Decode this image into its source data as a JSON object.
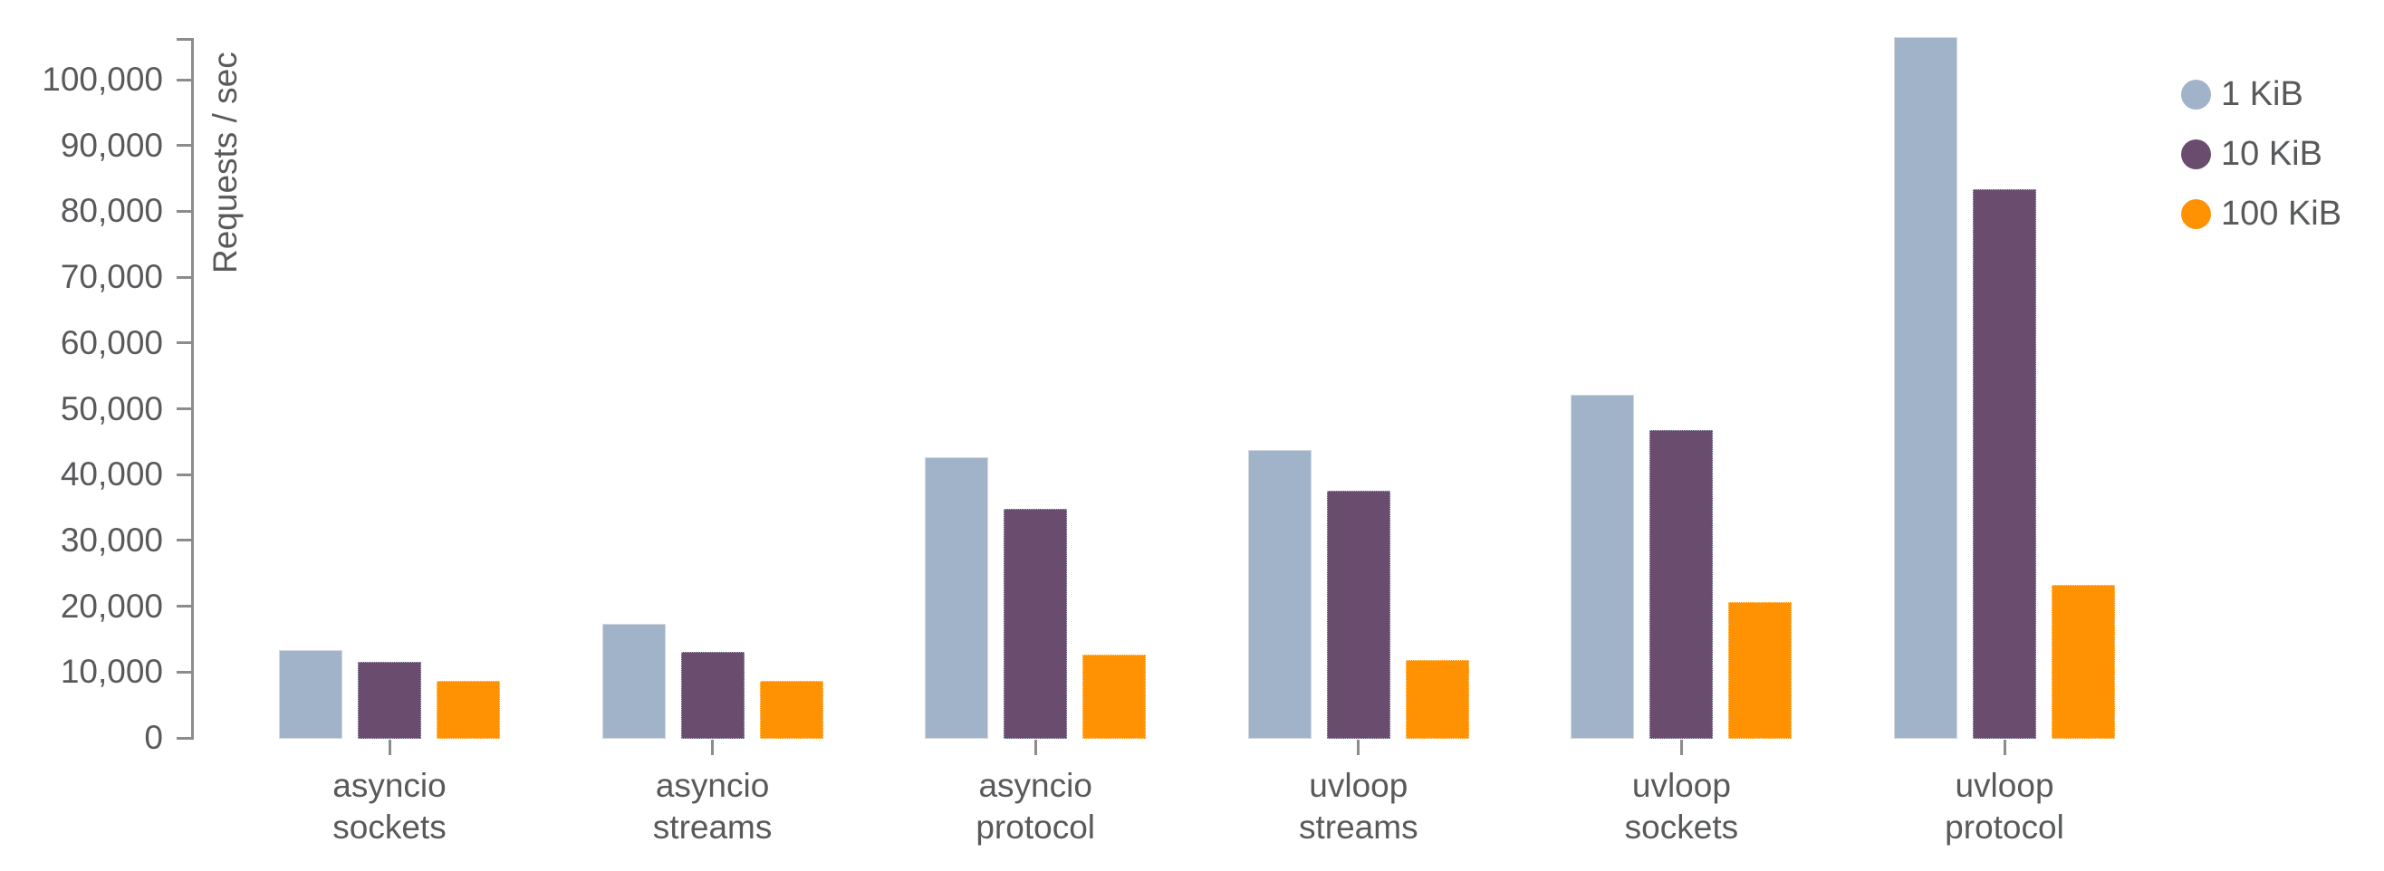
{
  "chart_data": {
    "type": "bar",
    "title": "",
    "xlabel": "",
    "ylabel": "Requests / sec",
    "grid": false,
    "legend_position": "top-right",
    "categories": [
      {
        "id": "asyncio-sockets",
        "line1": "asyncio",
        "line2": "sockets"
      },
      {
        "id": "asyncio-streams",
        "line1": "asyncio",
        "line2": "streams"
      },
      {
        "id": "asyncio-protocol",
        "line1": "asyncio",
        "line2": "protocol"
      },
      {
        "id": "uvloop-streams",
        "line1": "uvloop",
        "line2": "streams"
      },
      {
        "id": "uvloop-sockets",
        "line1": "uvloop",
        "line2": "sockets"
      },
      {
        "id": "uvloop-protocol",
        "line1": "uvloop",
        "line2": "protocol"
      }
    ],
    "series": [
      {
        "id": "1kib",
        "name": "1 KiB",
        "color": "#A1B3C9",
        "border_color": "#D3D7DD",
        "border_style": "solid",
        "values": [
          13400,
          17400,
          42700,
          43800,
          52200,
          106500
        ]
      },
      {
        "id": "10kib",
        "name": "10 KiB",
        "color": "#6A4C6E",
        "border_color": "#AAB6CC",
        "border_style": "dotted",
        "values": [
          11500,
          13100,
          34800,
          37500,
          46800,
          83300
        ]
      },
      {
        "id": "100kib",
        "name": "100 KiB",
        "color": "#FF9203",
        "border_color": "#FFD9A0",
        "border_style": "dotted",
        "values": [
          8600,
          8600,
          12600,
          11800,
          20600,
          23300
        ]
      }
    ],
    "y_axis": {
      "min": 0,
      "max": 106300,
      "tick_step": 10000,
      "ticks": [
        {
          "value": 0,
          "label": "0"
        },
        {
          "value": 10000,
          "label": "10,000"
        },
        {
          "value": 20000,
          "label": "20,000"
        },
        {
          "value": 30000,
          "label": "30,000"
        },
        {
          "value": 40000,
          "label": "40,000"
        },
        {
          "value": 50000,
          "label": "50,000"
        },
        {
          "value": 60000,
          "label": "60,000"
        },
        {
          "value": 70000,
          "label": "70,000"
        },
        {
          "value": 80000,
          "label": "80,000"
        },
        {
          "value": 90000,
          "label": "90,000"
        },
        {
          "value": 100000,
          "label": "100,000"
        }
      ]
    }
  },
  "colors": {
    "background": "#FFFFFF",
    "axis": "#8C8C8C",
    "tick_text": "#58595B"
  }
}
